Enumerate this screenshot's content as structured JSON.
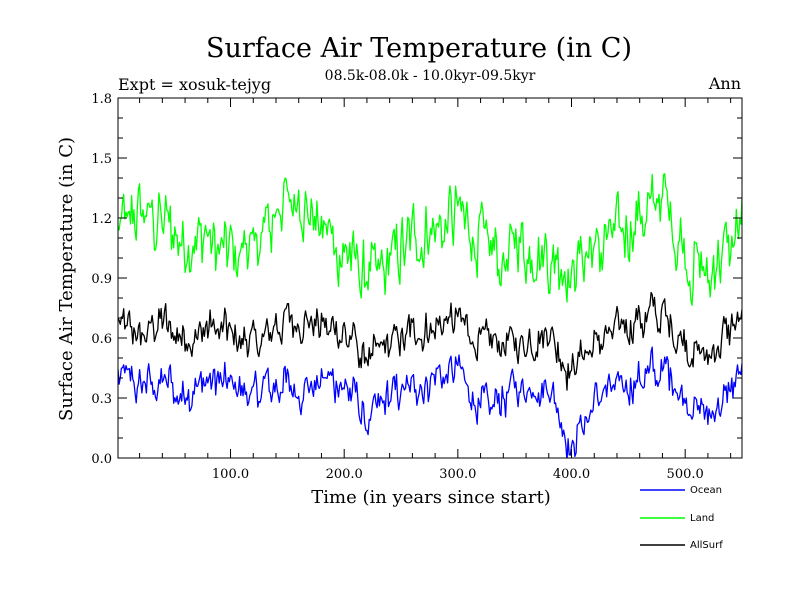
{
  "chart_data": {
    "type": "line",
    "title": "Surface Air Temperature (in C)",
    "subtitle": "08.5k-08.0k - 10.0kyr-09.5kyr",
    "expt_label": "Expt = xosuk-tejyg",
    "season_label": "Ann",
    "xlabel": "Time (in years since start)",
    "ylabel": "Surface Air Temperature (in C)",
    "xlim": [
      1,
      550
    ],
    "ylim": [
      0.0,
      1.8
    ],
    "x_ticks": [
      100,
      200,
      300,
      400,
      500
    ],
    "x_tick_labels": [
      "100.0",
      "200.0",
      "300.0",
      "400.0",
      "500.0"
    ],
    "y_ticks": [
      0.0,
      0.3,
      0.6,
      0.9,
      1.2,
      1.5,
      1.8
    ],
    "y_tick_labels": [
      "0.0",
      "0.3",
      "0.6",
      "0.9",
      "1.2",
      "1.5",
      "1.8"
    ],
    "legend_position": "bottom-right, outside plot",
    "series": [
      {
        "name": "Ocean",
        "color": "#0000ff",
        "mean": 0.37,
        "amplitude": 0.1,
        "noise": 0.09,
        "x_values": [
          1,
          20,
          40,
          60,
          80,
          100,
          120,
          140,
          160,
          180,
          200,
          220,
          240,
          260,
          280,
          300,
          320,
          340,
          360,
          380,
          400,
          420,
          440,
          460,
          480,
          500,
          520,
          550
        ],
        "y_values": [
          0.42,
          0.35,
          0.38,
          0.33,
          0.4,
          0.36,
          0.3,
          0.39,
          0.35,
          0.4,
          0.36,
          0.18,
          0.31,
          0.35,
          0.4,
          0.42,
          0.24,
          0.3,
          0.35,
          0.38,
          0.05,
          0.29,
          0.36,
          0.4,
          0.45,
          0.3,
          0.2,
          0.42
        ]
      },
      {
        "name": "Land",
        "color": "#00ff00",
        "mean": 1.05,
        "amplitude": 0.2,
        "noise": 0.15,
        "x_values": [
          1,
          20,
          40,
          60,
          80,
          100,
          120,
          140,
          160,
          180,
          200,
          220,
          240,
          260,
          280,
          300,
          320,
          340,
          360,
          380,
          400,
          420,
          440,
          460,
          480,
          500,
          520,
          550
        ],
        "y_values": [
          1.1,
          1.25,
          1.15,
          1.05,
          1.1,
          1.0,
          1.05,
          1.2,
          1.35,
          1.15,
          1.05,
          0.9,
          1.0,
          1.1,
          1.15,
          1.2,
          1.1,
          1.0,
          1.05,
          1.0,
          0.95,
          1.05,
          1.1,
          1.2,
          1.3,
          1.05,
          0.9,
          1.15
        ]
      },
      {
        "name": "AllSurf",
        "color": "#000000",
        "mean": 0.62,
        "amplitude": 0.12,
        "noise": 0.09,
        "x_values": [
          1,
          20,
          40,
          60,
          80,
          100,
          120,
          140,
          160,
          180,
          200,
          220,
          240,
          260,
          280,
          300,
          320,
          340,
          360,
          380,
          400,
          420,
          440,
          460,
          480,
          500,
          520,
          550
        ],
        "y_values": [
          0.68,
          0.62,
          0.66,
          0.6,
          0.65,
          0.62,
          0.58,
          0.66,
          0.68,
          0.66,
          0.62,
          0.48,
          0.58,
          0.62,
          0.66,
          0.7,
          0.55,
          0.58,
          0.6,
          0.64,
          0.42,
          0.58,
          0.64,
          0.68,
          0.72,
          0.58,
          0.5,
          0.7
        ]
      }
    ]
  }
}
